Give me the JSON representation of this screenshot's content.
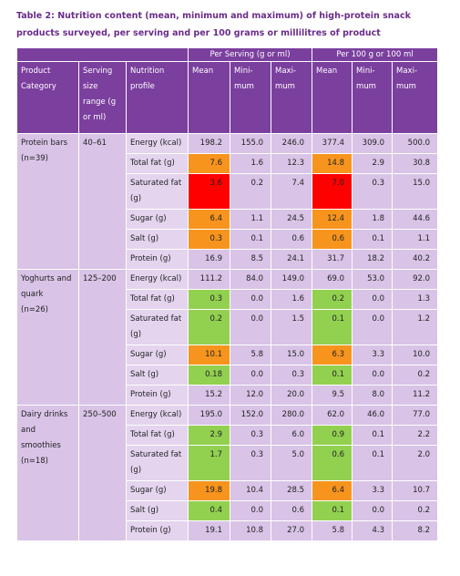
{
  "title": "Table 2: Nutrition content (mean, minimum and maximum) of high-protein snack products surveyed, per serving and per 100 grams or millilitres of product",
  "table": {
    "group_headers": [
      "Per Serving (g or ml)",
      "Per 100 g or 100 ml"
    ],
    "columns": [
      "Product Category",
      "Serving size range (g or ml)",
      "Nutrition profile",
      "Mean",
      "Mini-mum",
      "Maxi-mum",
      "Mean",
      "Mini-mum",
      "Maxi-mum"
    ],
    "groups": [
      {
        "category": "Protein bars",
        "count": "(n=39)",
        "serving_range": "40–61",
        "rows": [
          {
            "nutrient": "Energy (kcal)",
            "values": [
              "198.2",
              "155.0",
              "246.0",
              "377.4",
              "309.0",
              "500.0"
            ],
            "highlight": [
              null,
              null
            ]
          },
          {
            "nutrient": "Total fat (g)",
            "values": [
              "7.6",
              "1.6",
              "12.3",
              "14.8",
              "2.9",
              "30.8"
            ],
            "highlight": [
              "#f7941d",
              "#f7941d"
            ]
          },
          {
            "nutrient": "Saturated fat (g)",
            "values": [
              "3.6",
              "0.2",
              "7.4",
              "7.0",
              "0.3",
              "15.0"
            ],
            "highlight": [
              "#ff0000",
              "#ff0000"
            ]
          },
          {
            "nutrient": "Sugar (g)",
            "values": [
              "6.4",
              "1.1",
              "24.5",
              "12.4",
              "1.8",
              "44.6"
            ],
            "highlight": [
              "#f7941d",
              "#f7941d"
            ]
          },
          {
            "nutrient": "Salt (g)",
            "values": [
              "0.3",
              "0.1",
              "0.6",
              "0.6",
              "0.1",
              "1.1"
            ],
            "highlight": [
              "#f7941d",
              "#f7941d"
            ]
          },
          {
            "nutrient": "Protein (g)",
            "values": [
              "16.9",
              "8.5",
              "24.1",
              "31.7",
              "18.2",
              "40.2"
            ],
            "highlight": [
              null,
              null
            ]
          }
        ]
      },
      {
        "category": "Yoghurts and quark",
        "count": "(n=26)",
        "serving_range": "125–200",
        "rows": [
          {
            "nutrient": "Energy (kcal)",
            "values": [
              "111.2",
              "84.0",
              "149.0",
              "69.0",
              "53.0",
              "92.0"
            ],
            "highlight": [
              null,
              null
            ]
          },
          {
            "nutrient": "Total fat (g)",
            "values": [
              "0.3",
              "0.0",
              "1.6",
              "0.2",
              "0.0",
              "1.3"
            ],
            "highlight": [
              "#92d050",
              "#92d050"
            ]
          },
          {
            "nutrient": "Saturated fat (g)",
            "values": [
              "0.2",
              "0.0",
              "1.5",
              "0.1",
              "0.0",
              "1.2"
            ],
            "highlight": [
              "#92d050",
              "#92d050"
            ]
          },
          {
            "nutrient": "Sugar (g)",
            "values": [
              "10.1",
              "5.8",
              "15.0",
              "6.3",
              "3.3",
              "10.0"
            ],
            "highlight": [
              "#f7941d",
              "#f7941d"
            ]
          },
          {
            "nutrient": "Salt (g)",
            "values": [
              "0.18",
              "0.0",
              "0.3",
              "0.1",
              "0.0",
              "0.2"
            ],
            "highlight": [
              "#92d050",
              "#92d050"
            ]
          },
          {
            "nutrient": "Protein (g)",
            "values": [
              "15.2",
              "12.0",
              "20.0",
              "9.5",
              "8.0",
              "11.2"
            ],
            "highlight": [
              null,
              null
            ]
          }
        ]
      },
      {
        "category": "Dairy drinks and smoothies",
        "count": "(n=18)",
        "serving_range": "250–500",
        "rows": [
          {
            "nutrient": "Energy (kcal)",
            "values": [
              "195.0",
              "152.0",
              "280.0",
              "62.0",
              "46.0",
              "77.0"
            ],
            "highlight": [
              null,
              null
            ]
          },
          {
            "nutrient": "Total fat (g)",
            "values": [
              "2.9",
              "0.3",
              "6.0",
              "0.9",
              "0.1",
              "2.2"
            ],
            "highlight": [
              "#92d050",
              "#92d050"
            ]
          },
          {
            "nutrient": "Saturated fat (g)",
            "values": [
              "1.7",
              "0.3",
              "5.0",
              "0.6",
              "0.1",
              "2.0"
            ],
            "highlight": [
              "#92d050",
              "#92d050"
            ]
          },
          {
            "nutrient": "Sugar (g)",
            "values": [
              "19.8",
              "10.4",
              "28.5",
              "6.4",
              "3.3",
              "10.7"
            ],
            "highlight": [
              "#f7941d",
              "#f7941d"
            ]
          },
          {
            "nutrient": "Salt (g)",
            "values": [
              "0.4",
              "0.0",
              "0.6",
              "0.1",
              "0.0",
              "0.2"
            ],
            "highlight": [
              "#92d050",
              "#92d050"
            ]
          },
          {
            "nutrient": "Protein (g)",
            "values": [
              "19.1",
              "10.8",
              "27.0",
              "5.8",
              "4.3",
              "8.2"
            ],
            "highlight": [
              null,
              null
            ]
          }
        ]
      }
    ]
  }
}
